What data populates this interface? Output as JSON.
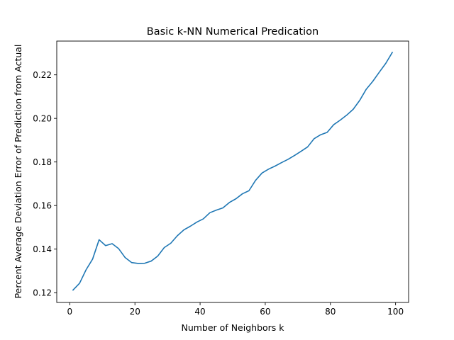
{
  "chart_data": {
    "type": "line",
    "title": "Basic k-NN Numerical Predication",
    "xlabel": "Number of Neighbors k",
    "ylabel": "Percent Average Deviation Error of Prediction from Actual",
    "xlim": [
      -4,
      104
    ],
    "ylim": [
      0.1155,
      0.2355
    ],
    "xticks": [
      0,
      20,
      40,
      60,
      80,
      100
    ],
    "xtick_labels": [
      "0",
      "20",
      "40",
      "60",
      "80",
      "100"
    ],
    "yticks": [
      0.12,
      0.14,
      0.16,
      0.18,
      0.2,
      0.22
    ],
    "ytick_labels": [
      "0.12",
      "0.14",
      "0.16",
      "0.18",
      "0.20",
      "0.22"
    ],
    "grid": false,
    "line_color": "#1f77b4",
    "series": [
      {
        "x": [
          1,
          3,
          5,
          7,
          9,
          11,
          13,
          15,
          17,
          19,
          21,
          23,
          25,
          27,
          29,
          31,
          33,
          35,
          37,
          39,
          41,
          43,
          45,
          47,
          49,
          51,
          53,
          55,
          57,
          59,
          61,
          63,
          65,
          67,
          69,
          71,
          73,
          75,
          77,
          79,
          81,
          83,
          85,
          87,
          89,
          91,
          93,
          95,
          97,
          99
        ],
        "values": [
          0.1212,
          0.1243,
          0.1305,
          0.1354,
          0.1443,
          0.1416,
          0.1425,
          0.1402,
          0.1361,
          0.1338,
          0.1334,
          0.1335,
          0.1345,
          0.1368,
          0.1407,
          0.1427,
          0.1461,
          0.1488,
          0.1505,
          0.1524,
          0.1539,
          0.1567,
          0.1579,
          0.1589,
          0.1614,
          0.1631,
          0.1654,
          0.1668,
          0.1715,
          0.1749,
          0.1767,
          0.1781,
          0.1797,
          0.1812,
          0.183,
          0.1849,
          0.1869,
          0.1907,
          0.1925,
          0.1936,
          0.1971,
          0.1992,
          0.2015,
          0.2042,
          0.2083,
          0.2134,
          0.217,
          0.2212,
          0.2253,
          0.2303
        ]
      }
    ]
  }
}
